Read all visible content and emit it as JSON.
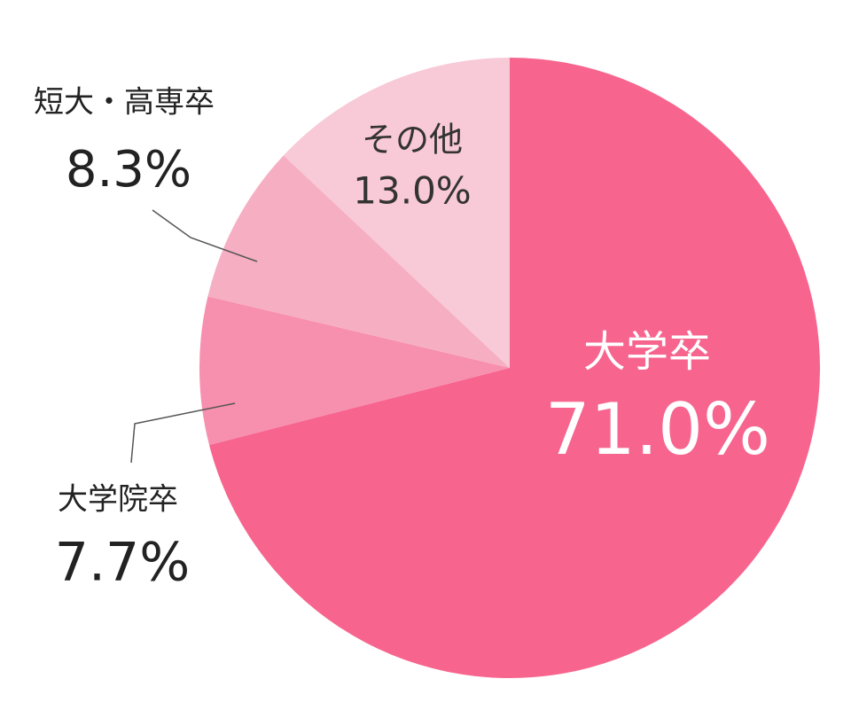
{
  "chart_data": {
    "type": "pie",
    "categories": [
      "大学卒",
      "大学院卒",
      "短大・高専卒",
      "その他"
    ],
    "values": [
      71.0,
      7.7,
      8.3,
      13.0
    ],
    "value_labels": [
      "71.0%",
      "7.7%",
      "8.3%",
      "13.0%"
    ],
    "colors": [
      "#f7658f",
      "#f78fae",
      "#f6aec3",
      "#f8c9d6"
    ]
  }
}
